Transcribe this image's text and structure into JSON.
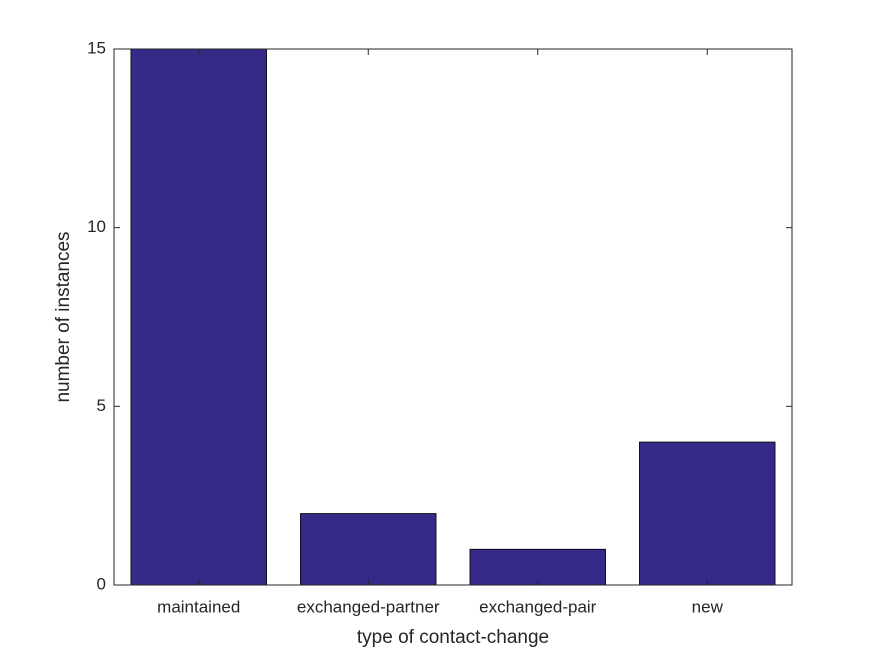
{
  "chart_data": {
    "type": "bar",
    "categories": [
      "maintained",
      "exchanged-partner",
      "exchanged-pair",
      "new"
    ],
    "values": [
      15,
      2,
      1,
      4
    ],
    "color": "#352a87",
    "xlabel": "type of contact-change",
    "ylabel": "number of instances",
    "ylim": [
      0,
      15
    ],
    "yticks": [
      0,
      5,
      10,
      15
    ],
    "grid": false
  }
}
